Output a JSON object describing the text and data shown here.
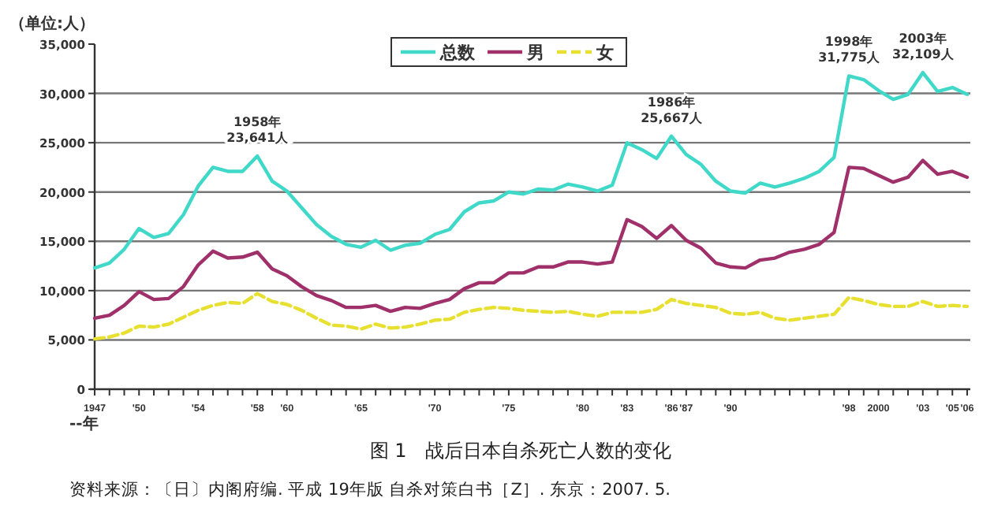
{
  "chart_data": {
    "type": "line",
    "title": "图 1　战后日本自杀死亡人数的变化",
    "ylabel": "（单位:人）",
    "xlabel": "--年",
    "x": [
      1947,
      1948,
      1949,
      1950,
      1951,
      1952,
      1953,
      1954,
      1955,
      1956,
      1957,
      1958,
      1959,
      1960,
      1961,
      1962,
      1963,
      1964,
      1965,
      1966,
      1967,
      1968,
      1969,
      1970,
      1971,
      1972,
      1973,
      1974,
      1975,
      1976,
      1977,
      1978,
      1979,
      1980,
      1981,
      1982,
      1983,
      1984,
      1985,
      1986,
      1987,
      1988,
      1989,
      1990,
      1991,
      1992,
      1993,
      1994,
      1995,
      1996,
      1997,
      1998,
      1999,
      2000,
      2001,
      2002,
      2003,
      2004,
      2005,
      2006
    ],
    "series": [
      {
        "name": "总数",
        "color": "#40d8c8",
        "values": [
          12300,
          12800,
          14200,
          16300,
          15400,
          15800,
          17700,
          20600,
          22500,
          22100,
          22100,
          23641,
          21100,
          20100,
          18400,
          16700,
          15500,
          14700,
          14400,
          15100,
          14100,
          14600,
          14800,
          15700,
          16200,
          18000,
          18900,
          19100,
          20000,
          19800,
          20300,
          20200,
          20800,
          20500,
          20100,
          20700,
          25000,
          24300,
          23400,
          25667,
          23800,
          22800,
          21100,
          20100,
          19900,
          20900,
          20500,
          20900,
          21400,
          22100,
          23500,
          31775,
          31400,
          30300,
          29400,
          29900,
          32109,
          30200,
          30600,
          29900
        ]
      },
      {
        "name": "男",
        "color": "#a0306a",
        "values": [
          7200,
          7500,
          8500,
          9900,
          9100,
          9200,
          10400,
          12600,
          14000,
          13300,
          13400,
          13900,
          12200,
          11500,
          10400,
          9500,
          9000,
          8300,
          8300,
          8500,
          7900,
          8300,
          8200,
          8700,
          9100,
          10200,
          10800,
          10800,
          11800,
          11800,
          12400,
          12400,
          12900,
          12900,
          12700,
          12900,
          17200,
          16500,
          15300,
          16600,
          15100,
          14300,
          12800,
          12400,
          12300,
          13100,
          13300,
          13900,
          14200,
          14700,
          15900,
          22500,
          22400,
          21700,
          21000,
          21500,
          23200,
          21800,
          22100,
          21500
        ]
      },
      {
        "name": "女",
        "color": "#e8e030",
        "line_style": "dashed",
        "values": [
          5100,
          5300,
          5700,
          6400,
          6300,
          6600,
          7300,
          8000,
          8500,
          8800,
          8700,
          9700,
          8900,
          8600,
          8000,
          7200,
          6500,
          6400,
          6100,
          6600,
          6200,
          6300,
          6600,
          7000,
          7100,
          7800,
          8100,
          8300,
          8200,
          8000,
          7900,
          7800,
          7900,
          7600,
          7400,
          7800,
          7800,
          7800,
          8100,
          9100,
          8700,
          8500,
          8300,
          7700,
          7600,
          7800,
          7200,
          7000,
          7200,
          7400,
          7600,
          9300,
          9000,
          8600,
          8400,
          8400,
          8900,
          8400,
          8500,
          8400
        ]
      }
    ],
    "xlim": [
      1947,
      2006
    ],
    "xticks": [
      {
        "value": 1947,
        "label": "1947"
      },
      {
        "value": 1948,
        "label": null
      },
      {
        "value": 1949,
        "label": null
      },
      {
        "value": 1950,
        "label": "'50"
      },
      {
        "value": 1951,
        "label": null
      },
      {
        "value": 1952,
        "label": null
      },
      {
        "value": 1953,
        "label": null
      },
      {
        "value": 1954,
        "label": "'54"
      },
      {
        "value": 1955,
        "label": null
      },
      {
        "value": 1956,
        "label": null
      },
      {
        "value": 1957,
        "label": null
      },
      {
        "value": 1958,
        "label": "'58"
      },
      {
        "value": 1959,
        "label": null
      },
      {
        "value": 1960,
        "label": "'60"
      },
      {
        "value": 1961,
        "label": null
      },
      {
        "value": 1962,
        "label": null
      },
      {
        "value": 1963,
        "label": null
      },
      {
        "value": 1964,
        "label": null
      },
      {
        "value": 1965,
        "label": "'65"
      },
      {
        "value": 1966,
        "label": null
      },
      {
        "value": 1967,
        "label": null
      },
      {
        "value": 1968,
        "label": null
      },
      {
        "value": 1969,
        "label": null
      },
      {
        "value": 1970,
        "label": "'70"
      },
      {
        "value": 1971,
        "label": null
      },
      {
        "value": 1972,
        "label": null
      },
      {
        "value": 1973,
        "label": null
      },
      {
        "value": 1974,
        "label": null
      },
      {
        "value": 1975,
        "label": "'75"
      },
      {
        "value": 1976,
        "label": null
      },
      {
        "value": 1977,
        "label": null
      },
      {
        "value": 1978,
        "label": null
      },
      {
        "value": 1979,
        "label": null
      },
      {
        "value": 1980,
        "label": "'80"
      },
      {
        "value": 1981,
        "label": null
      },
      {
        "value": 1982,
        "label": null
      },
      {
        "value": 1983,
        "label": "'83"
      },
      {
        "value": 1984,
        "label": null
      },
      {
        "value": 1985,
        "label": null
      },
      {
        "value": 1986,
        "label": "'86"
      },
      {
        "value": 1987,
        "label": "'87"
      },
      {
        "value": 1988,
        "label": null
      },
      {
        "value": 1989,
        "label": null
      },
      {
        "value": 1990,
        "label": "'90"
      },
      {
        "value": 1991,
        "label": null
      },
      {
        "value": 1992,
        "label": null
      },
      {
        "value": 1993,
        "label": null
      },
      {
        "value": 1994,
        "label": null
      },
      {
        "value": 1995,
        "label": null
      },
      {
        "value": 1996,
        "label": null
      },
      {
        "value": 1997,
        "label": null
      },
      {
        "value": 1998,
        "label": "'98"
      },
      {
        "value": 1999,
        "label": null
      },
      {
        "value": 2000,
        "label": "2000"
      },
      {
        "value": 2001,
        "label": null
      },
      {
        "value": 2002,
        "label": null
      },
      {
        "value": 2003,
        "label": "'03"
      },
      {
        "value": 2004,
        "label": null
      },
      {
        "value": 2005,
        "label": "'05"
      },
      {
        "value": 2006,
        "label": "'06"
      }
    ],
    "ylim": [
      0,
      35000
    ],
    "yticks": [
      0,
      {
        "value": 5000,
        "label": "5,000"
      },
      {
        "value": 10000,
        "label": "10,000"
      },
      {
        "value": 15000,
        "label": "15,000"
      },
      {
        "value": 20000,
        "label": "20,000"
      },
      {
        "value": 25000,
        "label": "25,000"
      },
      {
        "value": 30000,
        "label": "30,000"
      },
      {
        "value": 35000,
        "label": "35,000"
      }
    ],
    "grid": "y",
    "legend": "top",
    "annotations": [
      {
        "text": "1958年 23,641人",
        "x": 1958,
        "y": 23641
      },
      {
        "text": "1986年 25,667人",
        "x": 1986,
        "y": 25667
      },
      {
        "text": "1998年 31,775人",
        "x": 1998,
        "y": 31775
      },
      {
        "text": "2003年 32,109人",
        "x": 2003,
        "y": 32109
      },
      "资料来源：〔日〕内阁府编. 平成 19年版 自杀对策白书［Z］. 东京：2007. 5."
    ]
  }
}
